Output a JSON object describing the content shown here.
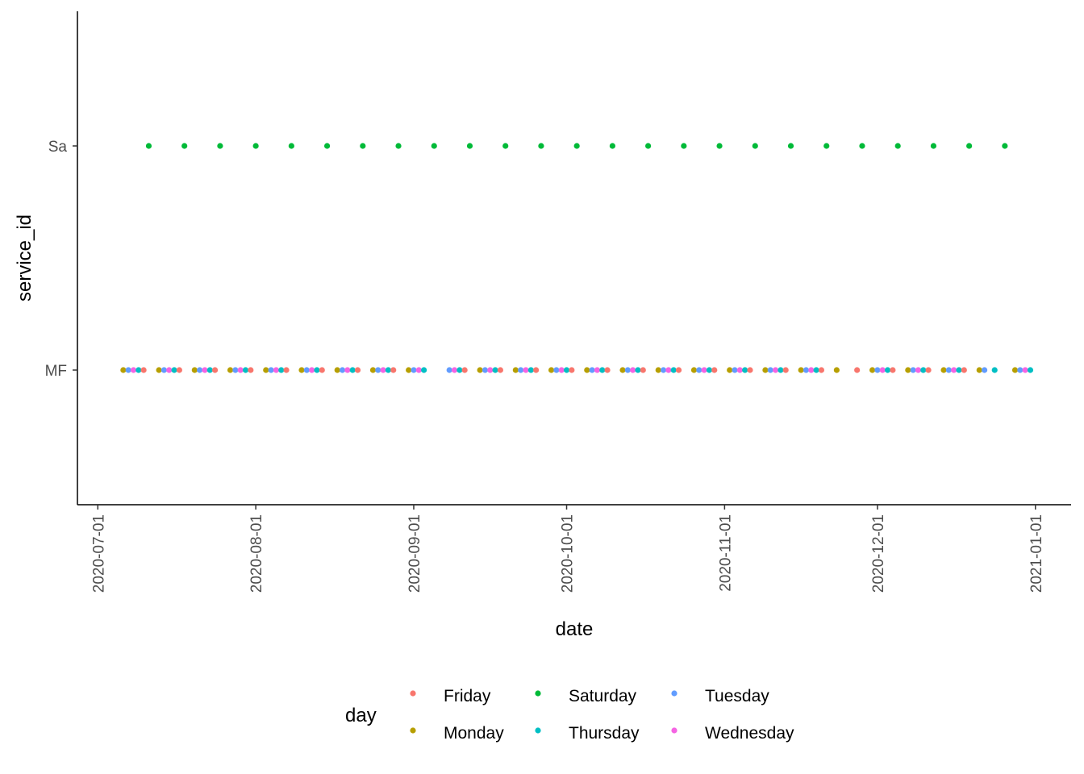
{
  "chart_data": {
    "type": "scatter",
    "title": "",
    "xlabel": "date",
    "ylabel": "service_id",
    "x_type": "date",
    "xlim": [
      "2020-06-27",
      "2021-01-08"
    ],
    "x_ticks": [
      "2020-07-01",
      "2020-08-01",
      "2020-09-01",
      "2020-10-01",
      "2020-11-01",
      "2020-12-01",
      "2021-01-01"
    ],
    "y_categories": [
      "MF",
      "Sa"
    ],
    "grid": false,
    "legend": {
      "title": "day",
      "position": "bottom",
      "entries": [
        {
          "name": "Friday",
          "color": "#F8766D"
        },
        {
          "name": "Monday",
          "color": "#B79F00"
        },
        {
          "name": "Saturday",
          "color": "#00BA38"
        },
        {
          "name": "Thursday",
          "color": "#00BFC4"
        },
        {
          "name": "Tuesday",
          "color": "#619CFF"
        },
        {
          "name": "Wednesday",
          "color": "#F564E3"
        }
      ]
    },
    "series": [
      {
        "name": "Saturday",
        "y": "Sa",
        "dates": [
          "2020-07-11",
          "2020-07-18",
          "2020-07-25",
          "2020-08-01",
          "2020-08-08",
          "2020-08-15",
          "2020-08-22",
          "2020-08-29",
          "2020-09-05",
          "2020-09-12",
          "2020-09-19",
          "2020-09-26",
          "2020-10-03",
          "2020-10-10",
          "2020-10-17",
          "2020-10-24",
          "2020-10-31",
          "2020-11-07",
          "2020-11-14",
          "2020-11-21",
          "2020-11-28",
          "2020-12-05",
          "2020-12-12",
          "2020-12-19",
          "2020-12-26"
        ]
      },
      {
        "name": "Monday",
        "y": "MF",
        "dates": [
          "2020-07-06",
          "2020-07-13",
          "2020-07-20",
          "2020-07-27",
          "2020-08-03",
          "2020-08-10",
          "2020-08-17",
          "2020-08-24",
          "2020-08-31",
          "2020-09-14",
          "2020-09-21",
          "2020-09-28",
          "2020-10-05",
          "2020-10-12",
          "2020-10-19",
          "2020-10-26",
          "2020-11-02",
          "2020-11-09",
          "2020-11-16",
          "2020-11-23",
          "2020-11-30",
          "2020-12-07",
          "2020-12-14",
          "2020-12-21",
          "2020-12-28"
        ]
      },
      {
        "name": "Tuesday",
        "y": "MF",
        "dates": [
          "2020-07-07",
          "2020-07-14",
          "2020-07-21",
          "2020-07-28",
          "2020-08-04",
          "2020-08-11",
          "2020-08-18",
          "2020-08-25",
          "2020-09-01",
          "2020-09-08",
          "2020-09-15",
          "2020-09-22",
          "2020-09-29",
          "2020-10-06",
          "2020-10-13",
          "2020-10-20",
          "2020-10-27",
          "2020-11-03",
          "2020-11-10",
          "2020-11-17",
          "2020-12-01",
          "2020-12-08",
          "2020-12-15",
          "2020-12-22",
          "2020-12-29"
        ]
      },
      {
        "name": "Wednesday",
        "y": "MF",
        "dates": [
          "2020-07-08",
          "2020-07-15",
          "2020-07-22",
          "2020-07-29",
          "2020-08-05",
          "2020-08-12",
          "2020-08-19",
          "2020-08-26",
          "2020-09-02",
          "2020-09-09",
          "2020-09-16",
          "2020-09-23",
          "2020-09-30",
          "2020-10-07",
          "2020-10-14",
          "2020-10-21",
          "2020-10-28",
          "2020-11-04",
          "2020-11-11",
          "2020-11-18",
          "2020-12-02",
          "2020-12-09",
          "2020-12-16",
          "2020-12-30"
        ]
      },
      {
        "name": "Thursday",
        "y": "MF",
        "dates": [
          "2020-07-09",
          "2020-07-16",
          "2020-07-23",
          "2020-07-30",
          "2020-08-06",
          "2020-08-13",
          "2020-08-20",
          "2020-08-27",
          "2020-09-03",
          "2020-09-10",
          "2020-09-17",
          "2020-09-24",
          "2020-10-01",
          "2020-10-08",
          "2020-10-15",
          "2020-10-22",
          "2020-10-29",
          "2020-11-05",
          "2020-11-12",
          "2020-11-19",
          "2020-12-03",
          "2020-12-10",
          "2020-12-17",
          "2020-12-24",
          "2020-12-31"
        ]
      },
      {
        "name": "Friday",
        "y": "MF",
        "dates": [
          "2020-07-10",
          "2020-07-17",
          "2020-07-24",
          "2020-07-31",
          "2020-08-07",
          "2020-08-14",
          "2020-08-21",
          "2020-08-28",
          "2020-09-11",
          "2020-09-18",
          "2020-09-25",
          "2020-10-02",
          "2020-10-09",
          "2020-10-16",
          "2020-10-23",
          "2020-10-30",
          "2020-11-06",
          "2020-11-13",
          "2020-11-20",
          "2020-11-27",
          "2020-12-04",
          "2020-12-11",
          "2020-12-18"
        ]
      }
    ]
  }
}
